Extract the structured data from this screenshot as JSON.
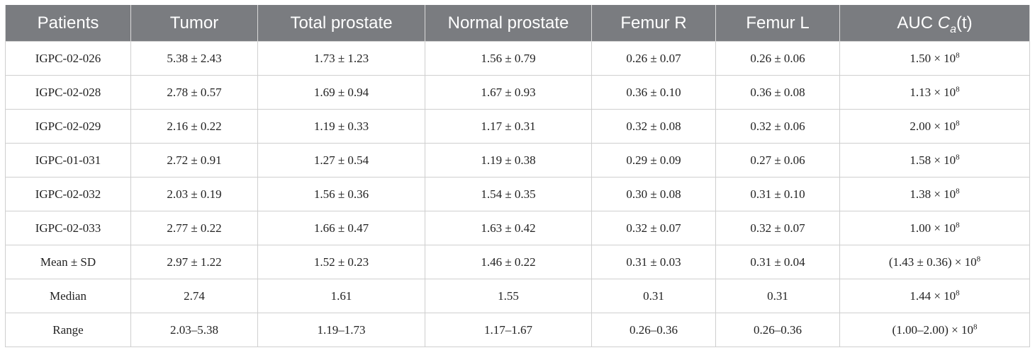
{
  "table": {
    "headers": {
      "patients": "Patients",
      "tumor": "Tumor",
      "total_prostate": "Total prostate",
      "normal_prostate": "Normal prostate",
      "femur_r": "Femur R",
      "femur_l": "Femur L",
      "auc_prefix": "AUC ",
      "auc_var": "C",
      "auc_sub": "a",
      "auc_suffix": "(t)"
    },
    "rows": [
      {
        "patient": "IGPC-02-026",
        "tumor": "5.38 ± 2.43",
        "total": "1.73 ± 1.23",
        "normal": "1.56 ± 0.79",
        "femur_r": "0.26 ± 0.07",
        "femur_l": "0.26 ± 0.06",
        "auc": "1.50 × 10",
        "auc_exp": "8"
      },
      {
        "patient": "IGPC-02-028",
        "tumor": "2.78 ± 0.57",
        "total": "1.69 ± 0.94",
        "normal": "1.67 ± 0.93",
        "femur_r": "0.36 ± 0.10",
        "femur_l": "0.36 ± 0.08",
        "auc": "1.13 × 10",
        "auc_exp": "8"
      },
      {
        "patient": "IGPC-02-029",
        "tumor": "2.16 ± 0.22",
        "total": "1.19 ± 0.33",
        "normal": "1.17 ± 0.31",
        "femur_r": "0.32 ± 0.08",
        "femur_l": "0.32 ± 0.06",
        "auc": "2.00 × 10",
        "auc_exp": "8"
      },
      {
        "patient": "IGPC-01-031",
        "tumor": "2.72 ± 0.91",
        "total": "1.27 ± 0.54",
        "normal": "1.19 ± 0.38",
        "femur_r": "0.29 ± 0.09",
        "femur_l": "0.27 ± 0.06",
        "auc": "1.58 × 10",
        "auc_exp": "8"
      },
      {
        "patient": "IGPC-02-032",
        "tumor": "2.03 ± 0.19",
        "total": "1.56 ± 0.36",
        "normal": "1.54 ± 0.35",
        "femur_r": "0.30 ± 0.08",
        "femur_l": "0.31 ± 0.10",
        "auc": "1.38 × 10",
        "auc_exp": "8"
      },
      {
        "patient": "IGPC-02-033",
        "tumor": "2.77 ± 0.22",
        "total": "1.66 ± 0.47",
        "normal": "1.63 ± 0.42",
        "femur_r": "0.32 ± 0.07",
        "femur_l": "0.32 ± 0.07",
        "auc": "1.00 × 10",
        "auc_exp": "8"
      },
      {
        "patient": "Mean ± SD",
        "tumor": "2.97 ± 1.22",
        "total": "1.52 ± 0.23",
        "normal": "1.46 ± 0.22",
        "femur_r": "0.31 ± 0.03",
        "femur_l": "0.31 ± 0.04",
        "auc": "(1.43 ± 0.36) × 10",
        "auc_exp": "8"
      },
      {
        "patient": "Median",
        "tumor": "2.74",
        "total": "1.61",
        "normal": "1.55",
        "femur_r": "0.31",
        "femur_l": "0.31",
        "auc": "1.44 × 10",
        "auc_exp": "8"
      },
      {
        "patient": "Range",
        "tumor": "2.03–5.38",
        "total": "1.19–1.73",
        "normal": "1.17–1.67",
        "femur_r": "0.26–0.36",
        "femur_l": "0.26–0.36",
        "auc": "(1.00–2.00) × 10",
        "auc_exp": "8"
      }
    ]
  }
}
